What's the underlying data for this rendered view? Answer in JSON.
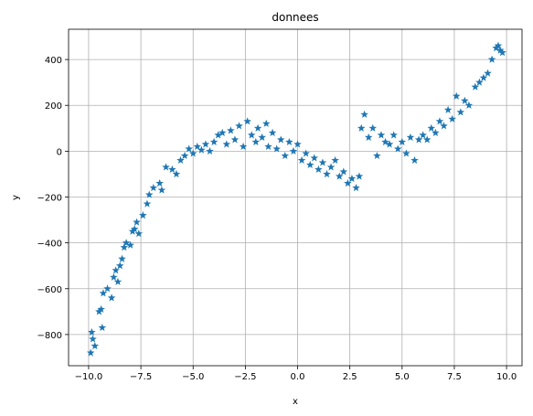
{
  "chart_data": {
    "type": "scatter",
    "title": "donnees",
    "x_label": "x",
    "y_label": "y",
    "x": [
      -9.9,
      -9.85,
      -9.8,
      -9.7,
      -9.5,
      -9.4,
      -9.35,
      -9.3,
      -9.1,
      -8.9,
      -8.8,
      -8.7,
      -8.6,
      -8.5,
      -8.4,
      -8.3,
      -8.2,
      -8.0,
      -7.9,
      -7.8,
      -7.7,
      -7.6,
      -7.4,
      -7.2,
      -7.1,
      -6.9,
      -6.6,
      -6.5,
      -6.3,
      -6.0,
      -5.8,
      -5.6,
      -5.4,
      -5.2,
      -5.0,
      -4.8,
      -4.6,
      -4.4,
      -4.2,
      -4.0,
      -3.8,
      -3.6,
      -3.4,
      -3.2,
      -3.0,
      -2.8,
      -2.6,
      -2.4,
      -2.2,
      -2.0,
      -1.9,
      -1.7,
      -1.5,
      -1.4,
      -1.2,
      -1.0,
      -0.8,
      -0.6,
      -0.4,
      -0.2,
      0.0,
      0.2,
      0.4,
      0.6,
      0.8,
      1.0,
      1.2,
      1.4,
      1.6,
      1.8,
      2.0,
      2.2,
      2.4,
      2.6,
      2.8,
      2.95,
      3.05,
      3.2,
      3.4,
      3.6,
      3.8,
      4.0,
      4.2,
      4.4,
      4.6,
      4.8,
      5.0,
      5.2,
      5.4,
      5.6,
      5.8,
      6.0,
      6.2,
      6.4,
      6.6,
      6.8,
      7.0,
      7.2,
      7.4,
      7.6,
      7.8,
      8.0,
      8.2,
      8.5,
      8.7,
      8.9,
      9.1,
      9.3,
      9.5,
      9.6,
      9.7,
      9.8
    ],
    "series": [
      {
        "name": "donnees",
        "color": "#1f77b4",
        "values": [
          -880,
          -790,
          -820,
          -850,
          -700,
          -690,
          -770,
          -620,
          -600,
          -640,
          -550,
          -520,
          -570,
          -500,
          -470,
          -420,
          -400,
          -410,
          -350,
          -340,
          -310,
          -360,
          -280,
          -230,
          -190,
          -160,
          -140,
          -170,
          -70,
          -80,
          -100,
          -40,
          -20,
          10,
          -10,
          20,
          5,
          30,
          0,
          40,
          70,
          80,
          30,
          90,
          50,
          110,
          20,
          130,
          70,
          40,
          100,
          60,
          120,
          20,
          80,
          10,
          50,
          -20,
          40,
          0,
          30,
          -40,
          -10,
          -60,
          -30,
          -80,
          -50,
          -100,
          -70,
          -40,
          -110,
          -90,
          -140,
          -120,
          -160,
          -110,
          100,
          160,
          60,
          100,
          -20,
          70,
          40,
          30,
          70,
          10,
          40,
          -10,
          60,
          -40,
          50,
          70,
          50,
          100,
          80,
          130,
          110,
          180,
          140,
          240,
          170,
          220,
          200,
          280,
          300,
          320,
          340,
          400,
          450,
          460,
          440,
          430
        ]
      }
    ],
    "xlim": [
      -10.96,
      10.74
    ],
    "ylim": [
      -936,
      532
    ],
    "xticks": [
      {
        "value": -10,
        "label": "−10.0"
      },
      {
        "value": -7.5,
        "label": "−7.5"
      },
      {
        "value": -5,
        "label": "−5.0"
      },
      {
        "value": -2.5,
        "label": "−2.5"
      },
      {
        "value": 0,
        "label": "0.0"
      },
      {
        "value": 2.5,
        "label": "2.5"
      },
      {
        "value": 5,
        "label": "5.0"
      },
      {
        "value": 7.5,
        "label": "7.5"
      },
      {
        "value": 10,
        "label": "10.0"
      }
    ],
    "yticks": [
      {
        "value": -800,
        "label": "−800"
      },
      {
        "value": -600,
        "label": "−600"
      },
      {
        "value": -400,
        "label": "−400"
      },
      {
        "value": -200,
        "label": "−200"
      },
      0,
      200,
      400
    ],
    "grid": true
  }
}
